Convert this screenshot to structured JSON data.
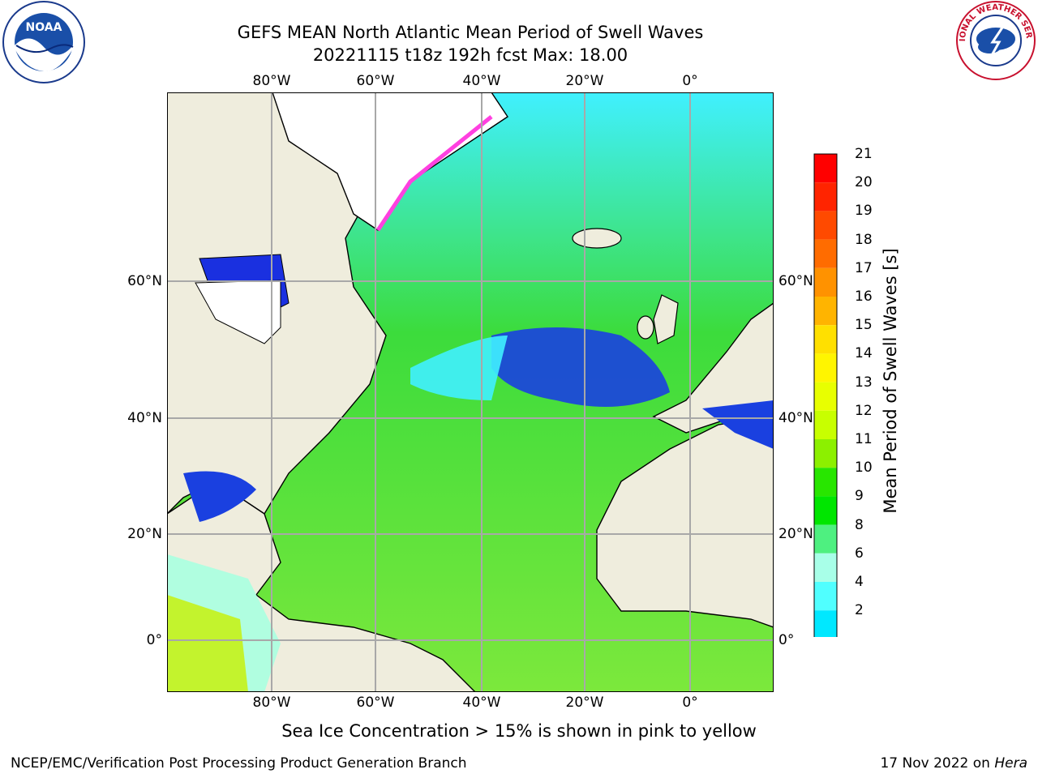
{
  "title_line1": "GEFS MEAN North Atlantic Mean Period of Swell Waves",
  "title_line2": "20221115 t18z 192h fcst   Max: 18.00",
  "top_lon_ticks": [
    "80°W",
    "60°W",
    "40°W",
    "20°W",
    "0°"
  ],
  "bottom_lon_ticks": [
    "80°W",
    "60°W",
    "40°W",
    "20°W",
    "0°"
  ],
  "lat_ticks": [
    "60°N",
    "40°N",
    "20°N",
    "0°"
  ],
  "colorbar": {
    "title": "Mean Period of Swell Waves [s]",
    "labels": [
      "21",
      "20",
      "19",
      "18",
      "17",
      "16",
      "15",
      "14",
      "13",
      "12",
      "11",
      "10",
      "9",
      "8",
      "6",
      "4",
      "2"
    ],
    "colors": [
      "#ff0000",
      "#ff2400",
      "#ff4a00",
      "#ff6c00",
      "#ff9200",
      "#ffb400",
      "#ffe000",
      "#fff500",
      "#e8ff00",
      "#c8ff00",
      "#8cf000",
      "#28e600",
      "#00e600",
      "#4ef080",
      "#a8ffe8",
      "#50ffff",
      "#00e8ff",
      "#0080ff",
      "#0000e6"
    ]
  },
  "ice_note": "Sea Ice Concentration > 15% is shown in pink to yellow",
  "footer_left": "NCEP/EMC/Verification Post Processing Product Generation Branch",
  "footer_date": "17 Nov 2022 on ",
  "footer_host": "Hera",
  "logos": {
    "left": "NOAA",
    "right_text": "NATIONAL WEATHER SERVICE"
  }
}
